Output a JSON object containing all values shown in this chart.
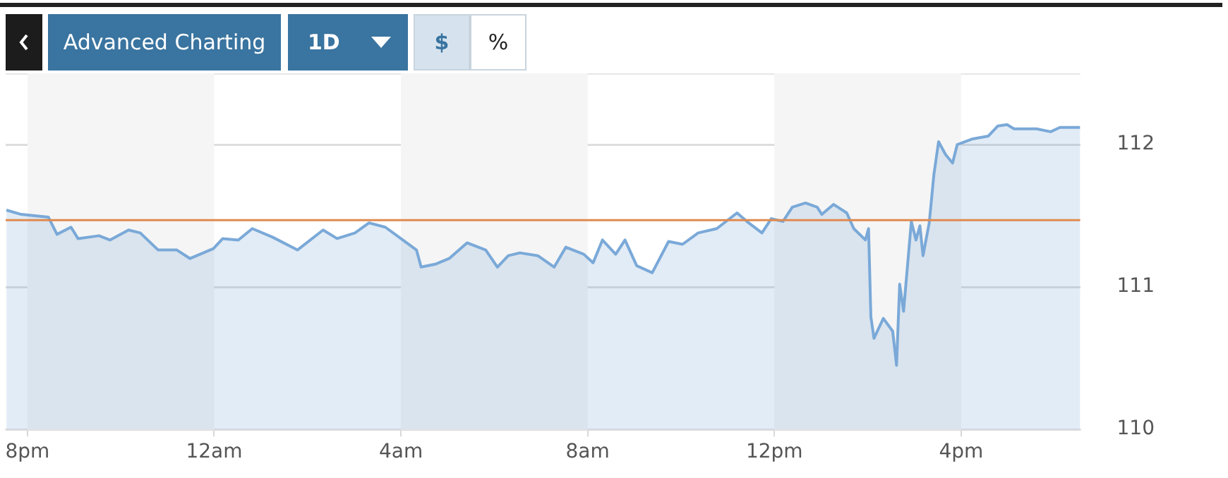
{
  "chart_data": {
    "type": "area",
    "annotations": [
      "Advanced Charting",
      "1D",
      "$",
      "%"
    ],
    "x": [
      "--01-01T19:33",
      "--01-01T19:52",
      "--01-01T20:27",
      "--01-01T20:38",
      "--01-01T20:56",
      "--01-01T21:05",
      "--01-01T21:32",
      "--01-01T21:46",
      "--01-01T22:10",
      "--01-01T22:25",
      "--01-01T22:48",
      "--01-01T23:12",
      "--01-01T23:29",
      "--01-01T23:59",
      "--01-02T00:11",
      "--01-02T00:31",
      "--01-02T00:49",
      "--01-02T01:15",
      "--01-02T01:47",
      "--01-02T02:20",
      "--01-02T02:38",
      "--01-02T03:01",
      "--01-02T03:19",
      "--01-02T03:40",
      "--01-02T04:00",
      "--01-02T04:20",
      "--01-02T04:26",
      "--01-02T04:44",
      "--01-02T05:02",
      "--01-02T05:25",
      "--01-02T05:49",
      "--01-02T06:04",
      "--01-02T06:18",
      "--01-02T06:33",
      "--01-02T06:56",
      "--01-02T07:17",
      "--01-02T07:32",
      "--01-02T07:55",
      "--01-02T08:07",
      "--01-02T08:19",
      "--01-02T08:36",
      "--01-02T08:48",
      "--01-02T09:03",
      "--01-02T09:23",
      "--01-02T09:44",
      "--01-02T10:02",
      "--01-02T10:22",
      "--01-02T10:46",
      "--01-02T11:12",
      "--01-02T11:27",
      "--01-02T11:44",
      "--01-02T11:56",
      "--01-02T12:11",
      "--01-02T12:23",
      "--01-02T12:40",
      "--01-02T12:55",
      "--01-02T13:01",
      "--01-02T13:16",
      "--01-02T13:33",
      "--01-02T13:42",
      "--01-02T13:57",
      "--01-02T14:01",
      "--01-02T14:04",
      "--01-02T14:08",
      "--01-02T14:20",
      "--01-02T14:32",
      "--01-02T14:37",
      "--01-02T14:41",
      "--01-02T14:46",
      "--01-02T14:56",
      "--01-02T15:02",
      "--01-02T15:07",
      "--01-02T15:11",
      "--01-02T15:19",
      "--01-02T15:25",
      "--01-02T15:31",
      "--01-02T15:40",
      "--01-02T15:49",
      "--01-02T15:55",
      "--01-02T16:15",
      "--01-02T16:35",
      "--01-02T16:47",
      "--01-02T16:59",
      "--01-02T17:08",
      "--01-02T17:37",
      "--01-02T17:55",
      "--01-02T18:07",
      "--01-02T18:33"
    ],
    "series": [
      {
        "color": "#7aa9d8",
        "values": [
          111.54,
          111.51,
          111.49,
          111.37,
          111.42,
          111.34,
          111.36,
          111.33,
          111.4,
          111.38,
          111.26,
          111.26,
          111.2,
          111.27,
          111.34,
          111.33,
          111.41,
          111.35,
          111.26,
          111.4,
          111.34,
          111.38,
          111.45,
          111.42,
          111.34,
          111.26,
          111.14,
          111.16,
          111.2,
          111.31,
          111.26,
          111.14,
          111.22,
          111.24,
          111.22,
          111.14,
          111.28,
          111.23,
          111.17,
          111.33,
          111.23,
          111.33,
          111.15,
          111.1,
          111.32,
          111.3,
          111.38,
          111.41,
          111.52,
          111.45,
          111.38,
          111.48,
          111.46,
          111.56,
          111.59,
          111.56,
          111.51,
          111.58,
          111.52,
          111.41,
          111.33,
          111.41,
          110.79,
          110.64,
          110.78,
          110.69,
          110.45,
          111.02,
          110.83,
          111.46,
          111.33,
          111.43,
          111.22,
          111.45,
          111.79,
          112.02,
          111.93,
          111.87,
          112.0,
          112.04,
          112.06,
          112.13,
          112.14,
          112.11,
          112.11,
          112.09,
          112.12,
          112.12
        ]
      }
    ],
    "xlim": [
      "--01-01T19:32",
      "--01-02T18:33"
    ],
    "xticks": [
      {
        "value": "--01-01T20:00",
        "label": "8pm"
      },
      {
        "value": "--01-02T00:00",
        "label": "12am"
      },
      {
        "value": "--01-02T04:00",
        "label": "4am"
      },
      {
        "value": "--01-02T08:00",
        "label": "8am"
      },
      {
        "value": "--01-02T12:00",
        "label": "12pm"
      },
      {
        "value": "--01-02T16:00",
        "label": "4pm"
      }
    ],
    "ylim": [
      110,
      112.5
    ],
    "yticks": [
      110,
      111,
      112
    ],
    "grid": "y",
    "legend": false,
    "ref_lines": [
      {
        "axis": "y",
        "value": 111.47,
        "color": "#e08a50"
      }
    ],
    "bands": [
      {
        "axis": "x",
        "from": "--01-01T20:00",
        "to": "--01-02T00:00",
        "color": "#f5f5f5"
      },
      {
        "axis": "x",
        "from": "--01-02T04:00",
        "to": "--01-02T08:00",
        "color": "#f5f5f5"
      },
      {
        "axis": "x",
        "from": "--01-02T12:00",
        "to": "--01-02T16:00",
        "color": "#f5f5f5"
      }
    ]
  }
}
